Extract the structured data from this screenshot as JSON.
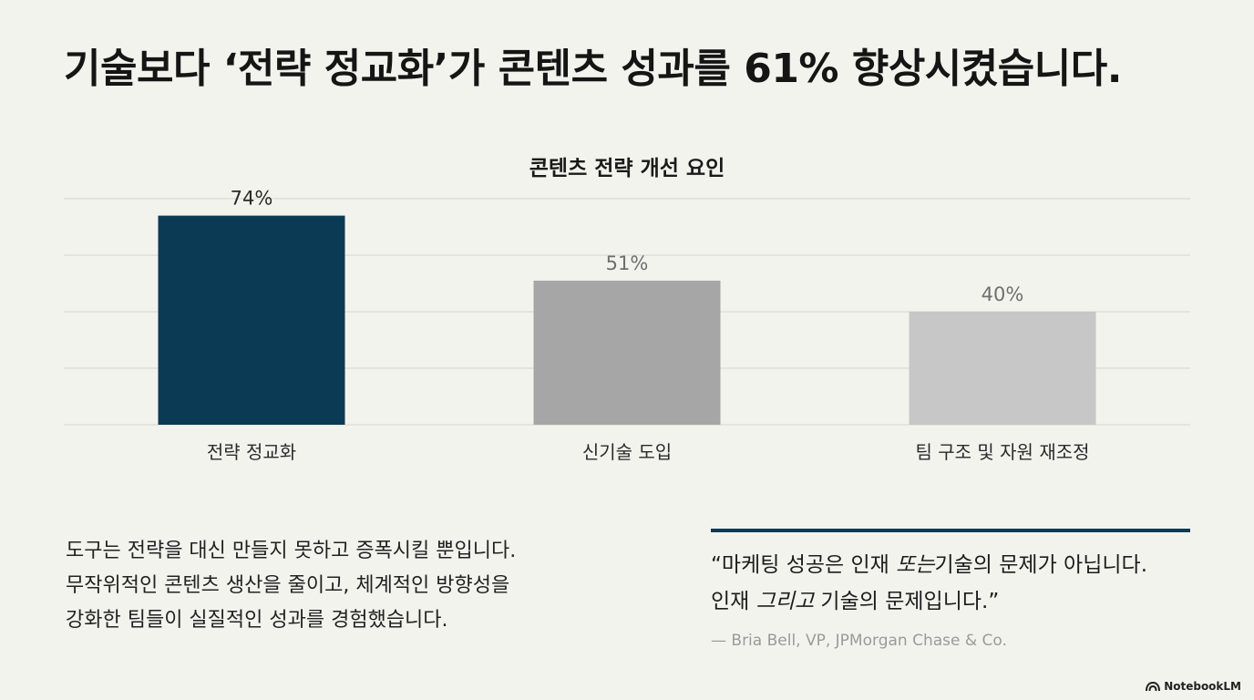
{
  "headline": "기술보다 ‘전략 정교화’가 콘텐츠 성과를 61% 향상시켰습니다.",
  "chart_data": {
    "type": "bar",
    "title": "콘텐츠 전략 개선 요인",
    "categories": [
      "전략 정교화",
      "신기술 도입",
      "팀 구조 및 자원 재조정"
    ],
    "values": [
      74,
      51,
      40
    ],
    "value_labels": [
      "74%",
      "51%",
      "40%"
    ],
    "colors": [
      "#0b3a55",
      "#a6a6a6",
      "#c7c7c7"
    ],
    "ylim": [
      0,
      80
    ],
    "grid": true,
    "xlabel": "",
    "ylabel": ""
  },
  "body_text": {
    "lines": [
      "도구는 전략을 대신 만들지 못하고 증폭시킬 뿐입니다.",
      "무작위적인 콘텐츠 생산을 줄이고, 체계적인 방향성을",
      "강화한 팀들이 실질적인 성과를 경험했습니다."
    ]
  },
  "quote": {
    "line1_pre": "“마케팅 성공은 인재 ",
    "line1_em": "또는",
    "line1_post": "기술의 문제가 아닙니다.",
    "line2_pre": "인재 ",
    "line2_em": "그리고",
    "line2_post": " 기술의 문제입니다.”",
    "attribution": "— Bria Bell, VP, JPMorgan Chase & Co."
  },
  "brand": {
    "name": "NotebookLM",
    "icon": "notebooklm-logo-icon"
  }
}
